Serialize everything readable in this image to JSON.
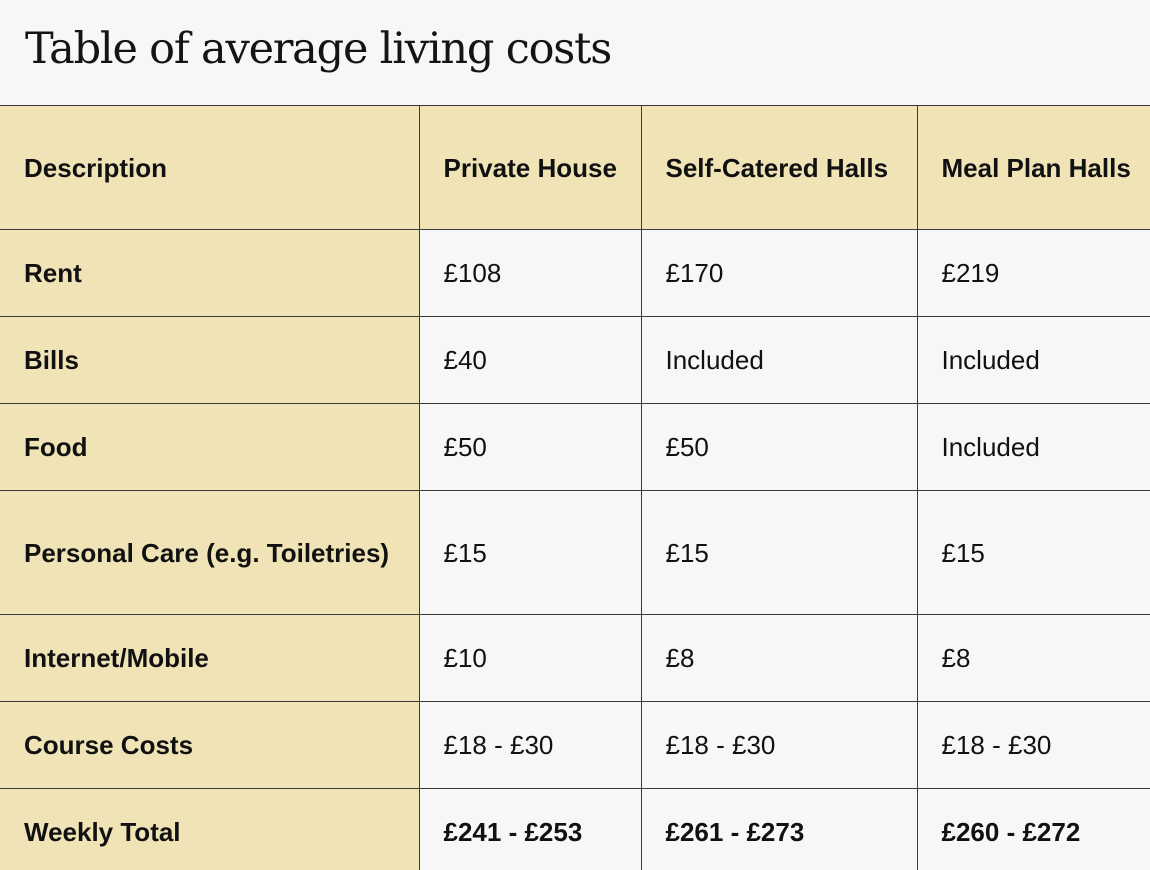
{
  "title": "Table of average living costs",
  "table": {
    "headers": [
      "Description",
      "Private House",
      "Self-Catered Halls",
      "Meal Plan Halls"
    ],
    "rows": [
      {
        "label": "Rent",
        "values": [
          "£108",
          "£170",
          "£219"
        ]
      },
      {
        "label": "Bills",
        "values": [
          "£40",
          "Included",
          "Included"
        ]
      },
      {
        "label": "Food",
        "values": [
          "£50",
          "£50",
          "Included"
        ]
      },
      {
        "label": "Personal Care (e.g. Toiletries)",
        "values": [
          "£15",
          "£15",
          "£15"
        ]
      },
      {
        "label": "Internet/Mobile",
        "values": [
          "£10",
          "£8",
          "£8"
        ]
      },
      {
        "label": "Course Costs",
        "values": [
          "£18 - £30",
          "£18 - £30",
          "£18 - £30"
        ]
      },
      {
        "label": "Weekly Total",
        "values": [
          "£241 - £253",
          "£261 - £273",
          "£260 - £272"
        ]
      }
    ]
  },
  "colors": {
    "header_bg": "#f0e3b6",
    "page_bg": "#f7f7f7",
    "border": "#3a3a3a",
    "text": "#111111"
  }
}
